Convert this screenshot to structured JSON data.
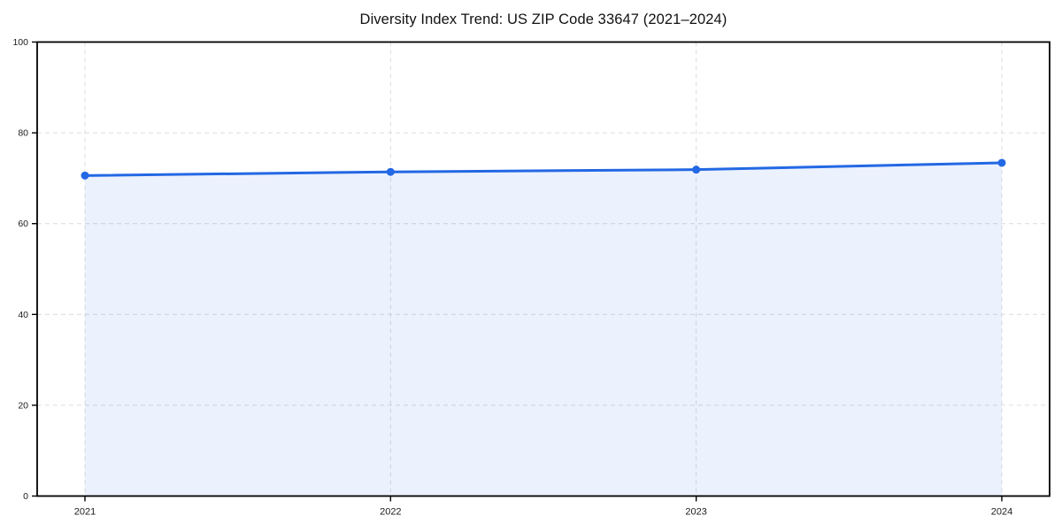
{
  "page": {
    "background_color": "#ffffff"
  },
  "chart_data": {
    "type": "area",
    "title": "Diversity Index Trend: US ZIP Code 33647 (2021–2024)",
    "categories": [
      "2021",
      "2022",
      "2023",
      "2024"
    ],
    "series": [
      {
        "name": "Diversity Index",
        "values": [
          70.6,
          71.4,
          71.9,
          73.4
        ]
      }
    ],
    "xlabel": "",
    "ylabel": "",
    "ylim": [
      0,
      100
    ],
    "yticks": [
      0,
      20,
      40,
      60,
      80,
      100
    ],
    "grid": true,
    "grid_style": "dashed",
    "legend_position": "none",
    "line_color": "#2368e4",
    "fill_color": "#2368e4",
    "fill_opacity": 0.09,
    "marker": "circle",
    "marker_radius": 4.5,
    "line_width": 3,
    "axis_color": "#000000",
    "grid_color": "#dcdcdc",
    "tick_label_color": "#1c1c1c",
    "title_color": "#111111"
  }
}
